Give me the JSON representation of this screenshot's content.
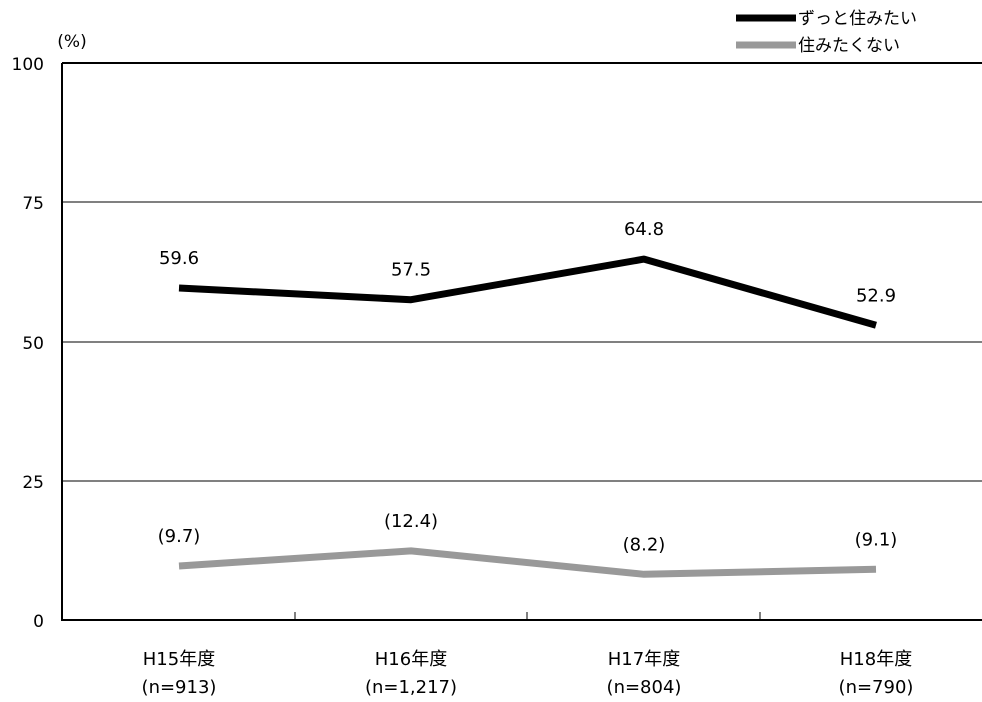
{
  "chart_data": {
    "type": "line",
    "unit_label": "(%)",
    "categories": [
      "H15年度",
      "H16年度",
      "H17年度",
      "H18年度"
    ],
    "category_sublabels": [
      "(n=913)",
      "(n=1,217)",
      "(n=804)",
      "(n=790)"
    ],
    "ylim": [
      0,
      100
    ],
    "yticks": [
      "0",
      "25",
      "50",
      "75",
      "100"
    ],
    "grid": true,
    "legend_position": "top-right",
    "series": [
      {
        "name": "ずっと住みたい",
        "values": [
          59.6,
          57.5,
          64.8,
          52.9
        ],
        "labels": [
          "59.6",
          "57.5",
          "64.8",
          "52.9"
        ],
        "color": "#000000"
      },
      {
        "name": "住みたくない",
        "values": [
          9.7,
          12.4,
          8.2,
          9.1
        ],
        "labels": [
          "(9.7)",
          "(12.4)",
          "(8.2)",
          "(9.1)"
        ],
        "color": "#999999"
      }
    ]
  }
}
